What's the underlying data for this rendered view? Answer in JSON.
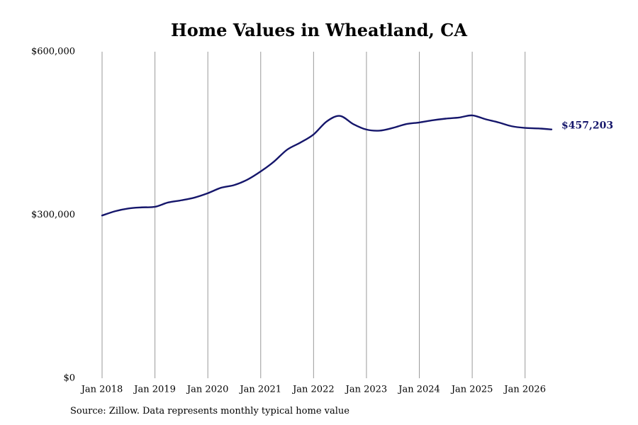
{
  "chart_data": {
    "type": "line",
    "title": "Home Values in Wheatland, CA",
    "source": "Source: Zillow. Data represents monthly typical home value",
    "xlabel": "",
    "ylabel": "",
    "x_range": [
      "2018-01",
      "2026-07"
    ],
    "ylim": [
      0,
      600000
    ],
    "y_ticks": [
      {
        "value": 0,
        "label": "$0"
      },
      {
        "value": 300000,
        "label": "$300,000"
      },
      {
        "value": 600000,
        "label": "$600,000"
      }
    ],
    "x_ticks": [
      {
        "date": "2018-01",
        "label": "Jan 2018"
      },
      {
        "date": "2019-01",
        "label": "Jan 2019"
      },
      {
        "date": "2020-01",
        "label": "Jan 2020"
      },
      {
        "date": "2021-01",
        "label": "Jan 2021"
      },
      {
        "date": "2022-01",
        "label": "Jan 2022"
      },
      {
        "date": "2023-01",
        "label": "Jan 2023"
      },
      {
        "date": "2024-01",
        "label": "Jan 2024"
      },
      {
        "date": "2025-01",
        "label": "Jan 2025"
      },
      {
        "date": "2026-01",
        "label": "Jan 2026"
      }
    ],
    "grid": {
      "vertical": true,
      "horizontal": false
    },
    "end_label": "$457,203",
    "colors": {
      "line": "#15166b",
      "grid": "#9a9a9a",
      "end_label": "#15166b"
    },
    "series": [
      {
        "points": [
          {
            "x": "2018-01",
            "y": 299000
          },
          {
            "x": "2018-04",
            "y": 307000
          },
          {
            "x": "2018-07",
            "y": 312000
          },
          {
            "x": "2018-10",
            "y": 314000
          },
          {
            "x": "2019-01",
            "y": 315000
          },
          {
            "x": "2019-04",
            "y": 323000
          },
          {
            "x": "2019-07",
            "y": 327000
          },
          {
            "x": "2019-10",
            "y": 332000
          },
          {
            "x": "2020-01",
            "y": 340000
          },
          {
            "x": "2020-04",
            "y": 350000
          },
          {
            "x": "2020-07",
            "y": 355000
          },
          {
            "x": "2020-10",
            "y": 365000
          },
          {
            "x": "2021-01",
            "y": 380000
          },
          {
            "x": "2021-04",
            "y": 398000
          },
          {
            "x": "2021-07",
            "y": 420000
          },
          {
            "x": "2021-10",
            "y": 433000
          },
          {
            "x": "2022-01",
            "y": 448000
          },
          {
            "x": "2022-04",
            "y": 472000
          },
          {
            "x": "2022-07",
            "y": 482000
          },
          {
            "x": "2022-10",
            "y": 467000
          },
          {
            "x": "2023-01",
            "y": 457000
          },
          {
            "x": "2023-04",
            "y": 455000
          },
          {
            "x": "2023-07",
            "y": 460000
          },
          {
            "x": "2023-10",
            "y": 467000
          },
          {
            "x": "2024-01",
            "y": 470000
          },
          {
            "x": "2024-04",
            "y": 474000
          },
          {
            "x": "2024-07",
            "y": 477000
          },
          {
            "x": "2024-10",
            "y": 479000
          },
          {
            "x": "2025-01",
            "y": 483000
          },
          {
            "x": "2025-04",
            "y": 476000
          },
          {
            "x": "2025-07",
            "y": 470000
          },
          {
            "x": "2025-10",
            "y": 463000
          },
          {
            "x": "2026-01",
            "y": 460000
          },
          {
            "x": "2026-04",
            "y": 459000
          },
          {
            "x": "2026-07",
            "y": 457203
          }
        ]
      }
    ]
  }
}
